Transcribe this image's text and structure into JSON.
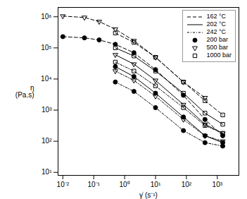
{
  "chart_data": {
    "type": "line",
    "xlabel": "γ̇ (s⁻¹)",
    "ylabel": "η\n(Pa.s)",
    "log": true,
    "grid": false,
    "legend": "upper right",
    "xlim": [
      0.007,
      5000
    ],
    "ylim": [
      8,
      2000000
    ],
    "xticks": [
      {
        "value": 0.01,
        "label": "10⁻²"
      },
      {
        "value": 0.1,
        "label": "10⁻¹"
      },
      {
        "value": 1,
        "label": "10⁰"
      },
      {
        "value": 10,
        "label": "10¹"
      },
      {
        "value": 100,
        "label": "10²"
      },
      {
        "value": 1000,
        "label": "10³"
      }
    ],
    "yticks": [
      {
        "value": 10,
        "label": "10¹"
      },
      {
        "value": 100,
        "label": "10²"
      },
      {
        "value": 1000,
        "label": "10³"
      },
      {
        "value": 10000,
        "label": "10⁴"
      },
      {
        "value": 100000,
        "label": "10⁵"
      },
      {
        "value": 1000000,
        "label": "10⁶"
      }
    ],
    "series": [
      {
        "line_style": "dashed",
        "marker": "open triangle-down",
        "x": [
          0.01,
          0.05,
          0.15,
          0.5,
          2,
          10,
          80,
          400
        ],
        "values": [
          1050000,
          950000,
          700000,
          400000,
          170000,
          50000,
          8000,
          2500
        ]
      },
      {
        "line_style": "dashed",
        "marker": "filled circle",
        "x": [
          0.01,
          0.05,
          0.15,
          0.5,
          2,
          10,
          80,
          400,
          1500
        ],
        "values": [
          230000,
          210000,
          180000,
          130000,
          70000,
          20000,
          3000,
          500,
          150
        ]
      },
      {
        "line_style": "dashed",
        "marker": "open square",
        "x": [
          0.5,
          2,
          10,
          80,
          400,
          1500
        ],
        "values": [
          300000,
          150000,
          50000,
          8000,
          2000,
          700
        ]
      },
      {
        "line_style": "solid",
        "marker": "open triangle-down",
        "x": [
          0.5,
          2,
          10,
          80,
          400,
          1500
        ],
        "values": [
          60000,
          30000,
          9000,
          1500,
          350,
          180
        ]
      },
      {
        "line_style": "solid",
        "marker": "filled circle",
        "x": [
          0.5,
          2,
          10,
          80,
          400,
          1500
        ],
        "values": [
          25000,
          12000,
          3500,
          600,
          150,
          90
        ]
      },
      {
        "line_style": "solid",
        "marker": "open square",
        "x": [
          0.5,
          2,
          10,
          80,
          400,
          1500
        ],
        "values": [
          100000,
          55000,
          18000,
          3500,
          800,
          350
        ]
      },
      {
        "line_style": "dashdot",
        "marker": "open triangle-down",
        "x": [
          0.5,
          2,
          10,
          80,
          400,
          1500
        ],
        "values": [
          18000,
          9000,
          2800,
          500,
          150,
          100
        ]
      },
      {
        "line_style": "dashdot",
        "marker": "filled circle",
        "x": [
          0.5,
          2,
          10,
          80,
          400,
          1500
        ],
        "values": [
          8000,
          4000,
          1200,
          220,
          90,
          70
        ]
      },
      {
        "line_style": "dashdot",
        "marker": "open square",
        "x": [
          0.5,
          2,
          10,
          80,
          400,
          1500
        ],
        "values": [
          35000,
          18000,
          6000,
          1200,
          320,
          180
        ]
      }
    ],
    "legend_entries": [
      {
        "label": "162 °C",
        "line_style": "dashed"
      },
      {
        "label": "202 °C",
        "line_style": "solid"
      },
      {
        "label": "242 °C",
        "line_style": "dashdot"
      },
      {
        "label": "200 bar",
        "marker": "filled circle"
      },
      {
        "label": "500 bar",
        "marker": "open triangle-down"
      },
      {
        "label": "1000 bar",
        "marker": "open square"
      }
    ]
  }
}
